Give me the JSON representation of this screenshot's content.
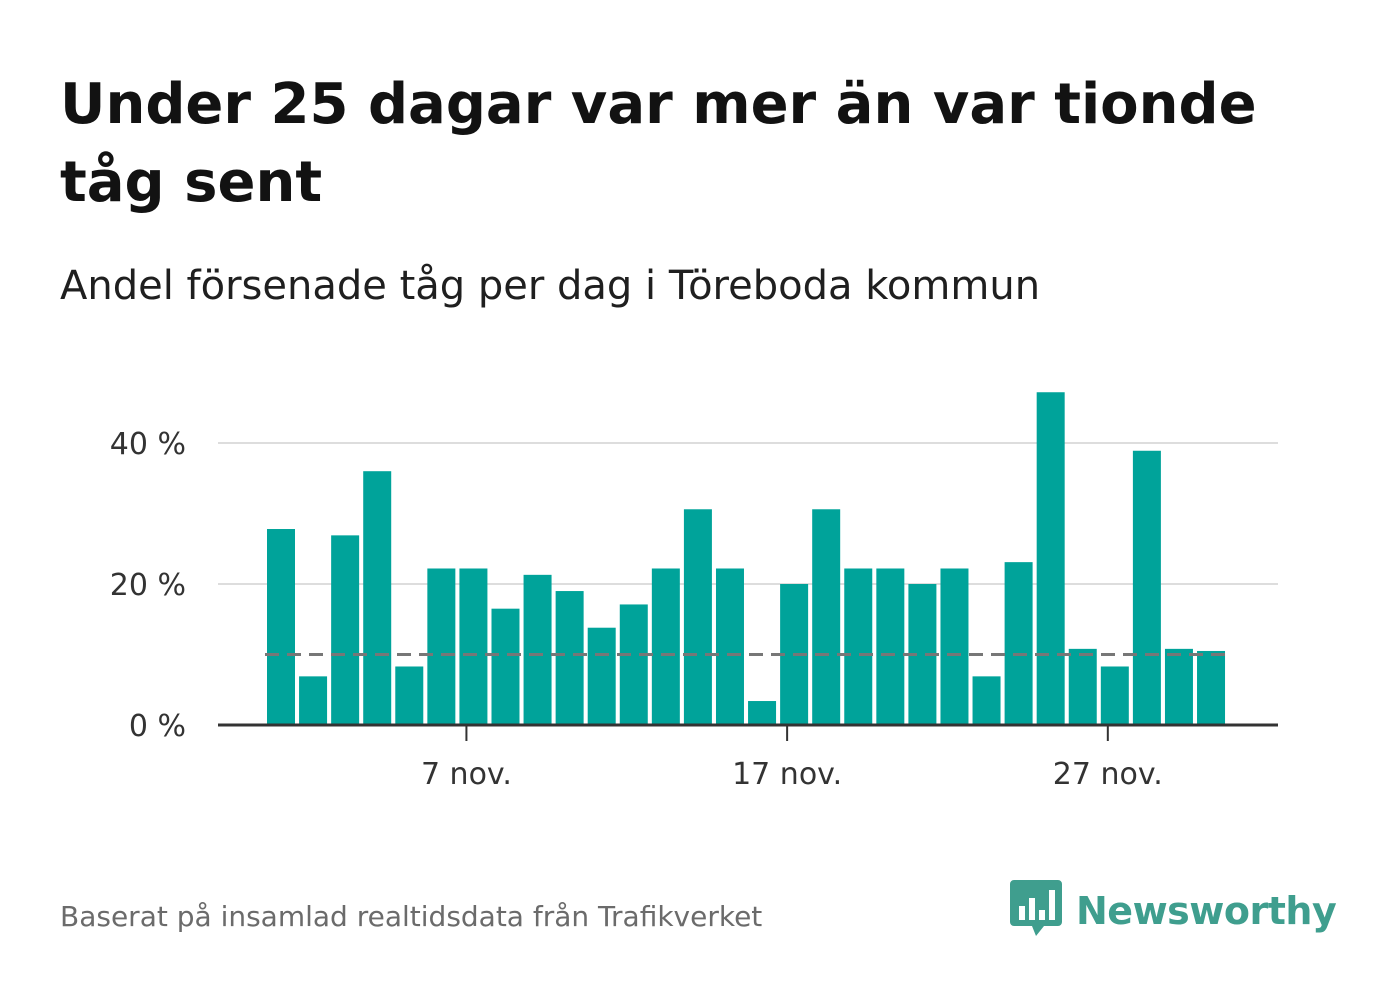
{
  "title": "Under 25 dagar var mer än var tionde tåg sent",
  "subtitle": "Andel försenade tåg per dag i Töreboda kommun",
  "footer": "Baserat på insamlad realtidsdata från Trafikverket",
  "brand": {
    "name": "Newsworthy",
    "icon": "newsworthy-logo-icon",
    "color": "#3f9e8e"
  },
  "colors": {
    "bar": "#00a39a",
    "reference": "#777777",
    "grid": "#dddddd",
    "axis": "#333333"
  },
  "chart_data": {
    "type": "bar",
    "x": [
      "1 nov.",
      "2 nov.",
      "3 nov.",
      "4 nov.",
      "5 nov.",
      "6 nov.",
      "7 nov.",
      "8 nov.",
      "9 nov.",
      "10 nov.",
      "11 nov.",
      "12 nov.",
      "13 nov.",
      "14 nov.",
      "15 nov.",
      "16 nov.",
      "17 nov.",
      "18 nov.",
      "19 nov.",
      "20 nov.",
      "21 nov.",
      "22 nov.",
      "23 nov.",
      "24 nov.",
      "25 nov.",
      "26 nov.",
      "27 nov.",
      "28 nov.",
      "29 nov.",
      "30 nov."
    ],
    "values": [
      27.8,
      6.9,
      26.9,
      36.0,
      8.3,
      22.2,
      22.2,
      16.5,
      21.3,
      19.0,
      13.8,
      17.1,
      22.2,
      30.6,
      22.2,
      3.4,
      20.0,
      30.6,
      22.2,
      22.2,
      20.0,
      22.2,
      6.9,
      23.1,
      47.2,
      10.8,
      8.3,
      38.9,
      10.8,
      10.5
    ],
    "reference_line": 10,
    "x_ticks": [
      "7 nov.",
      "17 nov.",
      "27 nov."
    ],
    "x_tick_dates": [
      "7 nov.",
      "17 nov.",
      "27 nov."
    ],
    "y_ticks": [
      {
        "value": 0,
        "label": "0 %"
      },
      {
        "value": 20,
        "label": "20 %"
      },
      {
        "value": 40,
        "label": "40 %"
      }
    ],
    "ylim": [
      0,
      50
    ],
    "grid": true,
    "xlabel": "",
    "ylabel": ""
  }
}
